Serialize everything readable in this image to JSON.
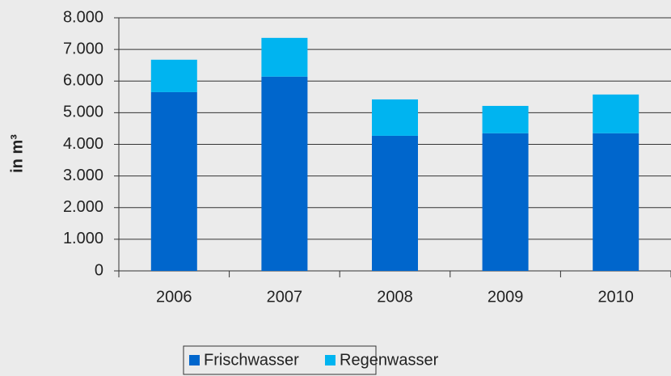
{
  "chart_data": {
    "type": "stacked_bar",
    "y_label": "in m³",
    "categories": [
      "2006",
      "2007",
      "2008",
      "2009",
      "2010"
    ],
    "series": [
      {
        "name": "Frischwasser",
        "color": "#0066cc",
        "values": [
          5650,
          6140,
          4270,
          4350,
          4350
        ]
      },
      {
        "name": "Regenwasser",
        "color": "#00b4f0",
        "values": [
          1025,
          1225,
          1150,
          865,
          1225
        ]
      }
    ],
    "ylim": [
      0,
      8000
    ],
    "yticks": [
      0,
      {
        "value": 1000,
        "label": "1.000"
      },
      {
        "value": 2000,
        "label": "2.000"
      },
      {
        "value": 3000,
        "label": "3.000"
      },
      {
        "value": 4000,
        "label": "4.000"
      },
      {
        "value": 5000,
        "label": "5.000"
      },
      {
        "value": 6000,
        "label": "6.000"
      },
      {
        "value": 7000,
        "label": "7.000"
      },
      {
        "value": 8000,
        "label": "8.000"
      }
    ],
    "grid": true,
    "legend": "bottom"
  }
}
